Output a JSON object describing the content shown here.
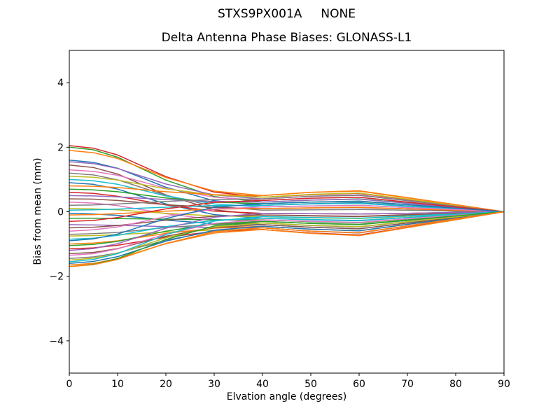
{
  "figure": {
    "background": "#ffffff"
  },
  "chart_data": {
    "type": "line",
    "title": "STXS9PX001A     NONE",
    "subtitle": "Delta Antenna Phase Biases: GLONASS-L1",
    "xlabel": "Elvation angle (degrees)",
    "ylabel": "Bias from mean (mm)",
    "xlim": [
      0,
      90
    ],
    "ylim": [
      -5,
      5
    ],
    "xticks": [
      0,
      10,
      20,
      30,
      40,
      50,
      60,
      70,
      80,
      90
    ],
    "yticks": [
      -4,
      -2,
      0,
      2,
      4
    ],
    "grid": false,
    "legend": "none",
    "axis_color": "#000000",
    "line_width": 1.5,
    "x": [
      0,
      5,
      10,
      20,
      30,
      40,
      50,
      60,
      70,
      80,
      90
    ],
    "series": [
      {
        "color": "#d62728",
        "values": [
          2.05,
          1.97,
          1.76,
          1.09,
          0.61,
          0.45,
          0.53,
          0.57,
          0.38,
          0.2,
          0
        ]
      },
      {
        "color": "#2ca02c",
        "values": [
          2.0,
          1.92,
          1.69,
          0.98,
          0.47,
          0.3,
          0.36,
          0.4,
          0.27,
          0.13,
          0
        ]
      },
      {
        "color": "#ff7f0e",
        "values": [
          1.9,
          1.83,
          1.65,
          1.06,
          0.64,
          0.5,
          0.6,
          0.65,
          0.44,
          0.22,
          0
        ]
      },
      {
        "color": "#1f77b4",
        "values": [
          1.6,
          1.53,
          1.35,
          0.76,
          0.34,
          0.2,
          0.25,
          0.28,
          0.18,
          0.09,
          0
        ]
      },
      {
        "color": "#9467bd",
        "values": [
          1.55,
          1.49,
          1.34,
          0.86,
          0.52,
          0.4,
          0.48,
          0.52,
          0.35,
          0.18,
          0
        ]
      },
      {
        "color": "#8c564b",
        "values": [
          1.45,
          1.37,
          1.17,
          0.52,
          0.06,
          -0.1,
          -0.13,
          -0.15,
          -0.1,
          -0.05,
          0
        ]
      },
      {
        "color": "#e377c2",
        "values": [
          1.3,
          1.25,
          1.13,
          0.73,
          0.45,
          0.35,
          0.42,
          0.45,
          0.3,
          0.15,
          0
        ]
      },
      {
        "color": "#7f7f7f",
        "values": [
          1.2,
          1.14,
          0.99,
          0.51,
          0.17,
          0.05,
          0.06,
          0.07,
          0.05,
          0.02,
          0
        ]
      },
      {
        "color": "#bcbd22",
        "values": [
          1.1,
          1.07,
          0.98,
          0.71,
          0.52,
          0.45,
          0.54,
          0.58,
          0.39,
          0.2,
          0
        ]
      },
      {
        "color": "#17becf",
        "values": [
          1.0,
          0.96,
          0.85,
          0.49,
          0.24,
          0.15,
          0.18,
          0.2,
          0.13,
          0.07,
          0
        ]
      },
      {
        "color": "#1f77b4",
        "values": [
          0.9,
          0.85,
          0.7,
          0.24,
          -0.09,
          -0.2,
          -0.25,
          -0.28,
          -0.18,
          -0.09,
          0
        ]
      },
      {
        "color": "#ff7f0e",
        "values": [
          0.8,
          0.79,
          0.75,
          0.62,
          0.53,
          0.5,
          0.6,
          0.64,
          0.43,
          0.22,
          0
        ]
      },
      {
        "color": "#2ca02c",
        "values": [
          0.7,
          0.68,
          0.62,
          0.43,
          0.3,
          0.25,
          0.3,
          0.32,
          0.22,
          0.11,
          0
        ]
      },
      {
        "color": "#d62728",
        "values": [
          0.6,
          0.57,
          0.48,
          0.21,
          0.02,
          -0.05,
          -0.06,
          -0.07,
          -0.05,
          -0.02,
          0
        ]
      },
      {
        "color": "#9467bd",
        "values": [
          0.5,
          0.49,
          0.46,
          0.38,
          0.32,
          0.3,
          0.36,
          0.39,
          0.26,
          0.13,
          0
        ]
      },
      {
        "color": "#8c564b",
        "values": [
          0.4,
          0.39,
          0.35,
          0.22,
          0.13,
          0.1,
          0.12,
          0.13,
          0.09,
          0.04,
          0
        ]
      },
      {
        "color": "#e377c2",
        "values": [
          0.3,
          0.27,
          0.19,
          -0.06,
          -0.24,
          -0.3,
          -0.36,
          -0.4,
          -0.27,
          -0.13,
          0
        ]
      },
      {
        "color": "#7f7f7f",
        "values": [
          0.2,
          0.21,
          0.24,
          0.32,
          0.38,
          0.4,
          0.48,
          0.51,
          0.34,
          0.17,
          0
        ]
      },
      {
        "color": "#bcbd22",
        "values": [
          0.1,
          0.09,
          0.06,
          -0.05,
          -0.13,
          -0.15,
          -0.19,
          -0.21,
          -0.14,
          -0.07,
          0
        ]
      },
      {
        "color": "#17becf",
        "values": [
          0.05,
          0.06,
          0.08,
          0.14,
          0.19,
          0.2,
          0.24,
          0.26,
          0.17,
          0.09,
          0
        ]
      },
      {
        "color": "#1f77b4",
        "values": [
          -0.05,
          -0.07,
          -0.11,
          -0.26,
          -0.37,
          -0.4,
          -0.48,
          -0.53,
          -0.35,
          -0.18,
          0
        ]
      },
      {
        "color": "#ff7f0e",
        "values": [
          -0.1,
          -0.09,
          -0.06,
          0.02,
          0.08,
          0.1,
          0.12,
          0.14,
          0.09,
          0.05,
          0
        ]
      },
      {
        "color": "#2ca02c",
        "values": [
          -0.2,
          -0.2,
          -0.21,
          -0.23,
          -0.25,
          -0.25,
          -0.31,
          -0.34,
          -0.23,
          -0.11,
          0
        ]
      },
      {
        "color": "#d62728",
        "values": [
          -0.3,
          -0.27,
          -0.18,
          0.09,
          0.29,
          0.35,
          0.42,
          0.45,
          0.3,
          0.15,
          0
        ]
      },
      {
        "color": "#9467bd",
        "values": [
          -0.4,
          -0.41,
          -0.42,
          -0.46,
          -0.49,
          -0.5,
          -0.6,
          -0.65,
          -0.44,
          -0.22,
          0
        ]
      },
      {
        "color": "#8c564b",
        "values": [
          -0.5,
          -0.48,
          -0.43,
          -0.26,
          -0.14,
          -0.1,
          -0.12,
          -0.14,
          -0.09,
          -0.05,
          0
        ]
      },
      {
        "color": "#e377c2",
        "values": [
          -0.6,
          -0.56,
          -0.47,
          -0.15,
          0.08,
          0.15,
          0.18,
          0.2,
          0.13,
          0.07,
          0
        ]
      },
      {
        "color": "#7f7f7f",
        "values": [
          -0.7,
          -0.68,
          -0.64,
          -0.49,
          -0.39,
          -0.35,
          -0.43,
          -0.47,
          -0.31,
          -0.16,
          0
        ]
      },
      {
        "color": "#bcbd22",
        "values": [
          -0.75,
          -0.74,
          -0.71,
          -0.63,
          -0.57,
          -0.55,
          -0.67,
          -0.73,
          -0.49,
          -0.25,
          0
        ]
      },
      {
        "color": "#17becf",
        "values": [
          -0.85,
          -0.82,
          -0.73,
          -0.46,
          -0.27,
          -0.2,
          -0.24,
          -0.27,
          -0.18,
          -0.09,
          0
        ]
      },
      {
        "color": "#1f77b4",
        "values": [
          -0.9,
          -0.84,
          -0.69,
          -0.21,
          0.14,
          0.25,
          0.3,
          0.33,
          0.22,
          0.11,
          0
        ]
      },
      {
        "color": "#ff7f0e",
        "values": [
          -1.0,
          -0.97,
          -0.9,
          -0.67,
          -0.51,
          -0.45,
          -0.54,
          -0.59,
          -0.39,
          -0.2,
          0
        ]
      },
      {
        "color": "#2ca02c",
        "values": [
          -1.05,
          -1.01,
          -0.92,
          -0.6,
          -0.38,
          -0.3,
          -0.36,
          -0.4,
          -0.27,
          -0.13,
          0
        ]
      },
      {
        "color": "#d62728",
        "values": [
          -1.15,
          -1.12,
          -1.04,
          -0.79,
          -0.61,
          -0.55,
          -0.66,
          -0.72,
          -0.48,
          -0.24,
          0
        ]
      },
      {
        "color": "#9467bd",
        "values": [
          -1.2,
          -1.14,
          -0.99,
          -0.51,
          -0.17,
          -0.05,
          -0.06,
          -0.07,
          -0.05,
          -0.02,
          0
        ]
      },
      {
        "color": "#8c564b",
        "values": [
          -1.3,
          -1.26,
          -1.14,
          -0.76,
          -0.49,
          -0.4,
          -0.48,
          -0.53,
          -0.35,
          -0.18,
          0
        ]
      },
      {
        "color": "#e377c2",
        "values": [
          -1.35,
          -1.3,
          -1.15,
          -0.69,
          -0.36,
          -0.25,
          -0.3,
          -0.33,
          -0.22,
          -0.11,
          0
        ]
      },
      {
        "color": "#7f7f7f",
        "values": [
          -1.45,
          -1.4,
          -1.28,
          -0.88,
          -0.6,
          -0.5,
          -0.6,
          -0.66,
          -0.44,
          -0.22,
          0
        ]
      },
      {
        "color": "#bcbd22",
        "values": [
          -1.5,
          -1.44,
          -1.29,
          -0.81,
          -0.47,
          -0.35,
          -0.42,
          -0.46,
          -0.31,
          -0.16,
          0
        ]
      },
      {
        "color": "#17becf",
        "values": [
          -1.55,
          -1.48,
          -1.3,
          -0.71,
          -0.29,
          -0.15,
          -0.18,
          -0.2,
          -0.13,
          -0.07,
          0
        ]
      },
      {
        "color": "#1f77b4",
        "values": [
          -1.6,
          -1.54,
          -1.39,
          -0.91,
          -0.57,
          -0.45,
          -0.54,
          -0.59,
          -0.39,
          -0.2,
          0
        ]
      },
      {
        "color": "#ff7f0e",
        "values": [
          -1.65,
          -1.6,
          -1.45,
          -0.99,
          -0.66,
          -0.55,
          -0.67,
          -0.74,
          -0.49,
          -0.25,
          0
        ]
      },
      {
        "color": "#2ca02c",
        "values": [
          -1.7,
          -1.63,
          -1.45,
          -0.86,
          -0.44,
          -0.3,
          -0.36,
          -0.39,
          -0.26,
          -0.13,
          0
        ]
      },
      {
        "color": "#ff7f0e",
        "values": [
          -1.7,
          -1.64,
          -1.48,
          -0.98,
          -0.62,
          -0.5,
          -0.6,
          -0.65,
          -0.44,
          -0.22,
          0
        ]
      }
    ]
  }
}
